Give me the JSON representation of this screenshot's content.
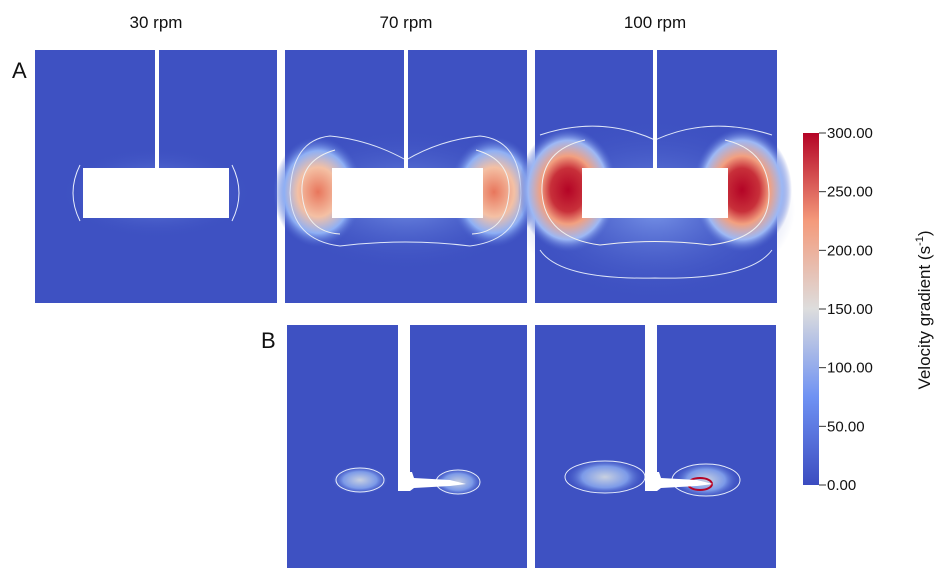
{
  "columns": [
    "30 rpm",
    "70 rpm",
    "100 rpm"
  ],
  "panels": [
    "A",
    "B"
  ],
  "colorbar": {
    "title": "Velocity gradient (s",
    "title_sup": "-1",
    "title_end": ")",
    "ticks": [
      "300.00",
      "250.00",
      "200.00",
      "150.00",
      "100.00",
      "50.00",
      "0.00"
    ]
  }
}
